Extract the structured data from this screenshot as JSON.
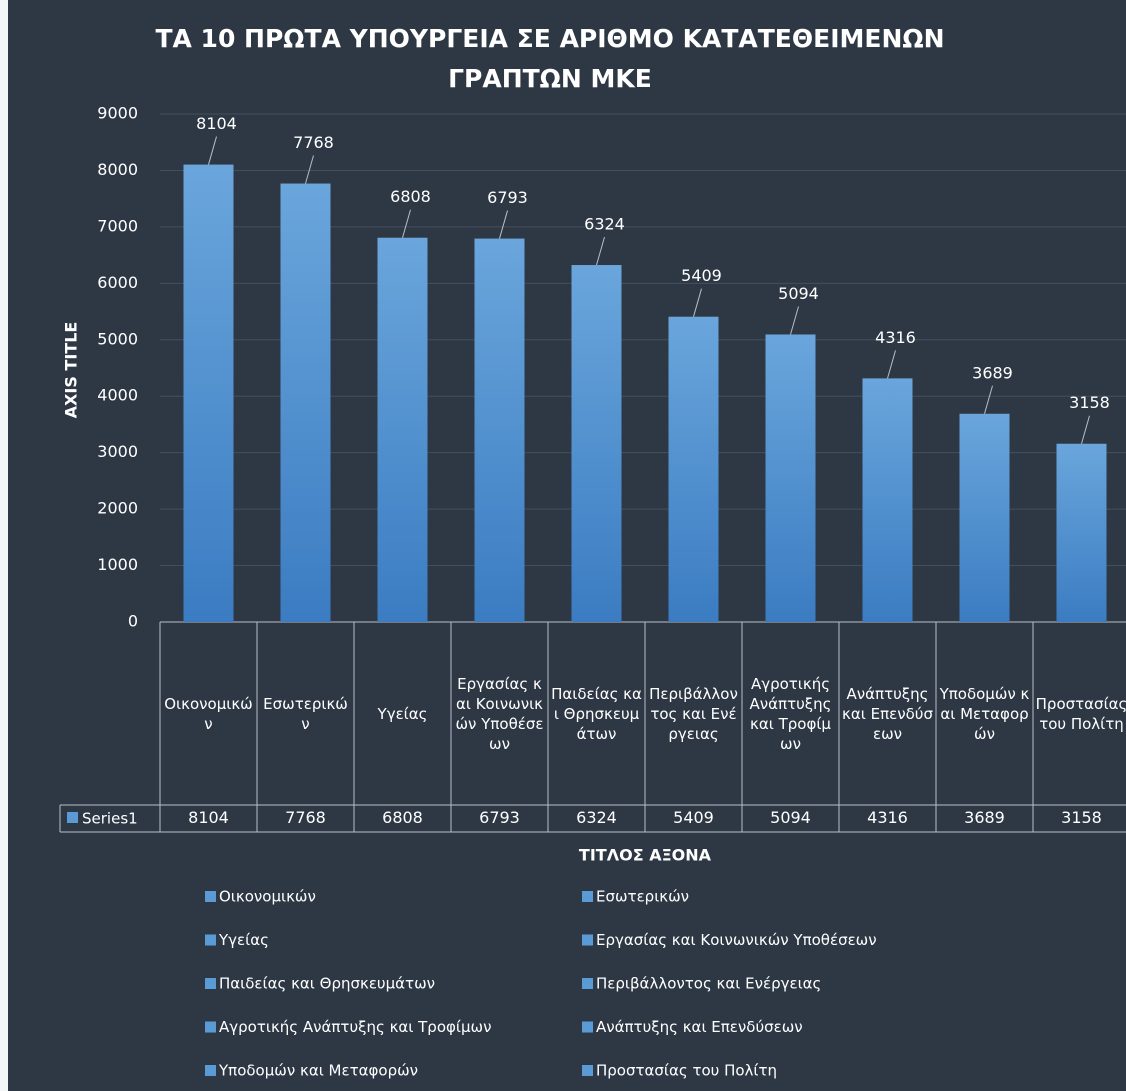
{
  "chart_data": {
    "type": "bar",
    "title": [
      "ΤΑ 10 ΠΡΩΤΑ ΥΠΟΥΡΓΕΙΑ ΣΕ ΑΡΙΘΜΟ ΚΑΤΑΤΕΘΕΙΜΕΝΩΝ",
      "ΓΡΑΠΤΩΝ ΜΚΕ"
    ],
    "y_label": "AXIS TITLE",
    "x_label": "ΤΙΤΛΟΣ ΑΞΟΝΑ",
    "categories": [
      "Οικονομικών",
      "Εσωτερικών",
      "Υγείας",
      "Εργασίας και Κοινωνικών Υποθέσεων",
      "Παιδείας και Θρησκευμάτων",
      "Περιβάλλοντος και Ενέργειας",
      "Αγροτικής Ανάπτυξης και Τροφίμων",
      "Ανάπτυξης και Επενδύσεων",
      "Υποδομών και Μεταφορών",
      "Προστασίας του Πολίτη"
    ],
    "series": [
      {
        "name": "Series1",
        "color": "#5b9bd5",
        "values": [
          8104,
          7768,
          6808,
          6793,
          6324,
          5409,
          5094,
          4316,
          3689,
          3158
        ]
      }
    ],
    "ylim": [
      0,
      9000
    ],
    "yticks": [
      0,
      1000,
      2000,
      3000,
      4000,
      5000,
      6000,
      7000,
      8000,
      9000
    ],
    "grid": true
  }
}
